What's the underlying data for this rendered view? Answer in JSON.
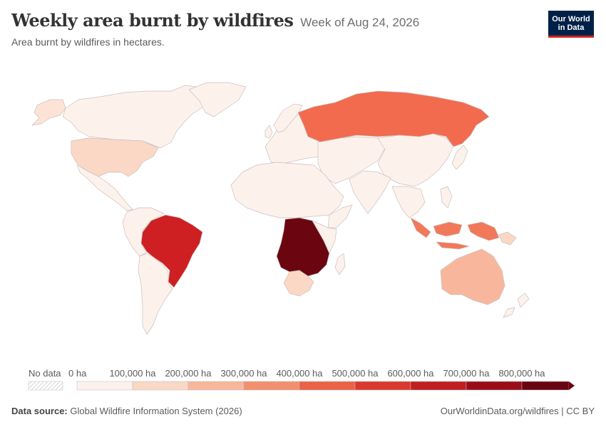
{
  "header": {
    "title": "Weekly area burnt by wildfires",
    "title_suffix": "Week of Aug 24, 2026",
    "subtitle": "Area burnt by wildfires in hectares."
  },
  "logo": {
    "line1": "Our World",
    "line2": "in Data"
  },
  "legend": {
    "no_data_label": "No data",
    "ticks": [
      "0 ha",
      "100,000 ha",
      "200,000 ha",
      "300,000 ha",
      "400,000 ha",
      "500,000 ha",
      "600,000 ha",
      "700,000 ha",
      "800,000 ha"
    ],
    "colors": [
      "#fdf1ec",
      "#fbd7c6",
      "#f8b79d",
      "#f28f6f",
      "#ea6347",
      "#d93a2e",
      "#c11e22",
      "#9a0d18",
      "#6a0410"
    ]
  },
  "map_colors": {
    "default": "#fdf1ec",
    "russia": "#f26b4f",
    "brazil": "#ce1f22",
    "central_africa": "#6b0611",
    "indonesia": "#f2785a",
    "australia": "#f8b79d",
    "usa": "#fbd7c6",
    "canada_alaska": "#fde3d6",
    "south_africa": "#fbd7c6",
    "borders": "#c9c0bd"
  },
  "footer": {
    "source_label": "Data source:",
    "source_text": "Global Wildfire Information System (2026)",
    "right_text": "OurWorldinData.org/wildfires | CC BY"
  }
}
